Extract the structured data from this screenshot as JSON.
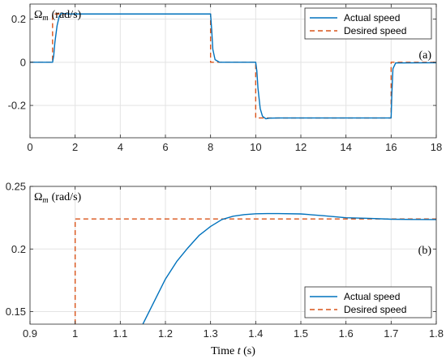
{
  "chart_data": [
    {
      "id": "a",
      "type": "line",
      "title": "",
      "ylabel": "Ω_m (rad/s)",
      "ylabel_main": "Ω",
      "ylabel_sub": "m",
      "ylabel_unit": "(rad/s)",
      "xlabel": "",
      "panel_label": "(a)",
      "xlim": [
        0,
        18
      ],
      "ylim": [
        -0.35,
        0.27
      ],
      "xticks": [
        0,
        2,
        4,
        6,
        8,
        10,
        12,
        14,
        16,
        18
      ],
      "xtick_labels": [
        "0",
        "2",
        "4",
        "6",
        "8",
        "10",
        "12",
        "14",
        "16",
        "18"
      ],
      "yticks": [
        -0.2,
        0,
        0.2
      ],
      "ytick_labels": [
        "-0.2",
        "0",
        "0.2"
      ],
      "grid": true,
      "legend": "top-right",
      "series": [
        {
          "name": "Actual speed",
          "color": "#0072BD",
          "style": "solid",
          "x": [
            0,
            1.0,
            1.05,
            1.1,
            1.2,
            1.3,
            1.4,
            1.5,
            1.7,
            2.0,
            8.0,
            8.05,
            8.1,
            8.2,
            8.4,
            10.0,
            10.05,
            10.1,
            10.2,
            10.3,
            10.45,
            10.6,
            11.0,
            16.0,
            16.03,
            16.08,
            16.2,
            18.0
          ],
          "y": [
            0,
            0,
            0.03,
            0.09,
            0.17,
            0.215,
            0.228,
            0.226,
            0.224,
            0.224,
            0.224,
            0.15,
            0.06,
            0.012,
            0.0,
            0.0,
            -0.04,
            -0.12,
            -0.215,
            -0.25,
            -0.262,
            -0.259,
            -0.258,
            -0.258,
            -0.15,
            -0.03,
            -0.003,
            -0.002
          ]
        },
        {
          "name": "Desired speed",
          "color": "#D95319",
          "style": "dashed",
          "x": [
            0,
            1,
            1,
            8,
            8,
            10,
            10,
            16,
            16,
            18
          ],
          "y": [
            0,
            0,
            0.224,
            0.224,
            0,
            0,
            -0.258,
            -0.258,
            0,
            0
          ]
        }
      ]
    },
    {
      "id": "b",
      "type": "line",
      "title": "",
      "ylabel": "Ω_m (rad/s)",
      "ylabel_main": "Ω",
      "ylabel_sub": "m",
      "ylabel_unit": "(rad/s)",
      "xlabel": "Time t (s)",
      "xlabel_prefix": "Time ",
      "xlabel_var": "t",
      "xlabel_suffix": " (s)",
      "panel_label": "(b)",
      "xlim": [
        0.9,
        1.8
      ],
      "ylim": [
        0.14,
        0.25
      ],
      "xticks": [
        0.9,
        1.0,
        1.1,
        1.2,
        1.3,
        1.4,
        1.5,
        1.6,
        1.7,
        1.8
      ],
      "xtick_labels": [
        "0.9",
        "1",
        "1.1",
        "1.2",
        "1.3",
        "1.4",
        "1.5",
        "1.6",
        "1.7",
        "1.8"
      ],
      "yticks": [
        0.15,
        0.2,
        0.25
      ],
      "ytick_labels": [
        "0.15",
        "0.2",
        "0.25"
      ],
      "grid": true,
      "legend": "bottom-right",
      "series": [
        {
          "name": "Actual speed",
          "color": "#0072BD",
          "style": "solid",
          "x": [
            1.15,
            1.175,
            1.2,
            1.225,
            1.25,
            1.275,
            1.3,
            1.325,
            1.35,
            1.375,
            1.4,
            1.425,
            1.45,
            1.5,
            1.55,
            1.6,
            1.65,
            1.7,
            1.75,
            1.8
          ],
          "y": [
            0.14,
            0.158,
            0.176,
            0.19,
            0.201,
            0.211,
            0.218,
            0.2235,
            0.2262,
            0.2275,
            0.2281,
            0.2283,
            0.2283,
            0.228,
            0.2266,
            0.225,
            0.2245,
            0.2238,
            0.2236,
            0.2235
          ]
        },
        {
          "name": "Desired speed",
          "color": "#D95319",
          "style": "dashed",
          "x": [
            1.0,
            1.0,
            1.8
          ],
          "y": [
            0.14,
            0.224,
            0.224
          ]
        }
      ]
    }
  ]
}
